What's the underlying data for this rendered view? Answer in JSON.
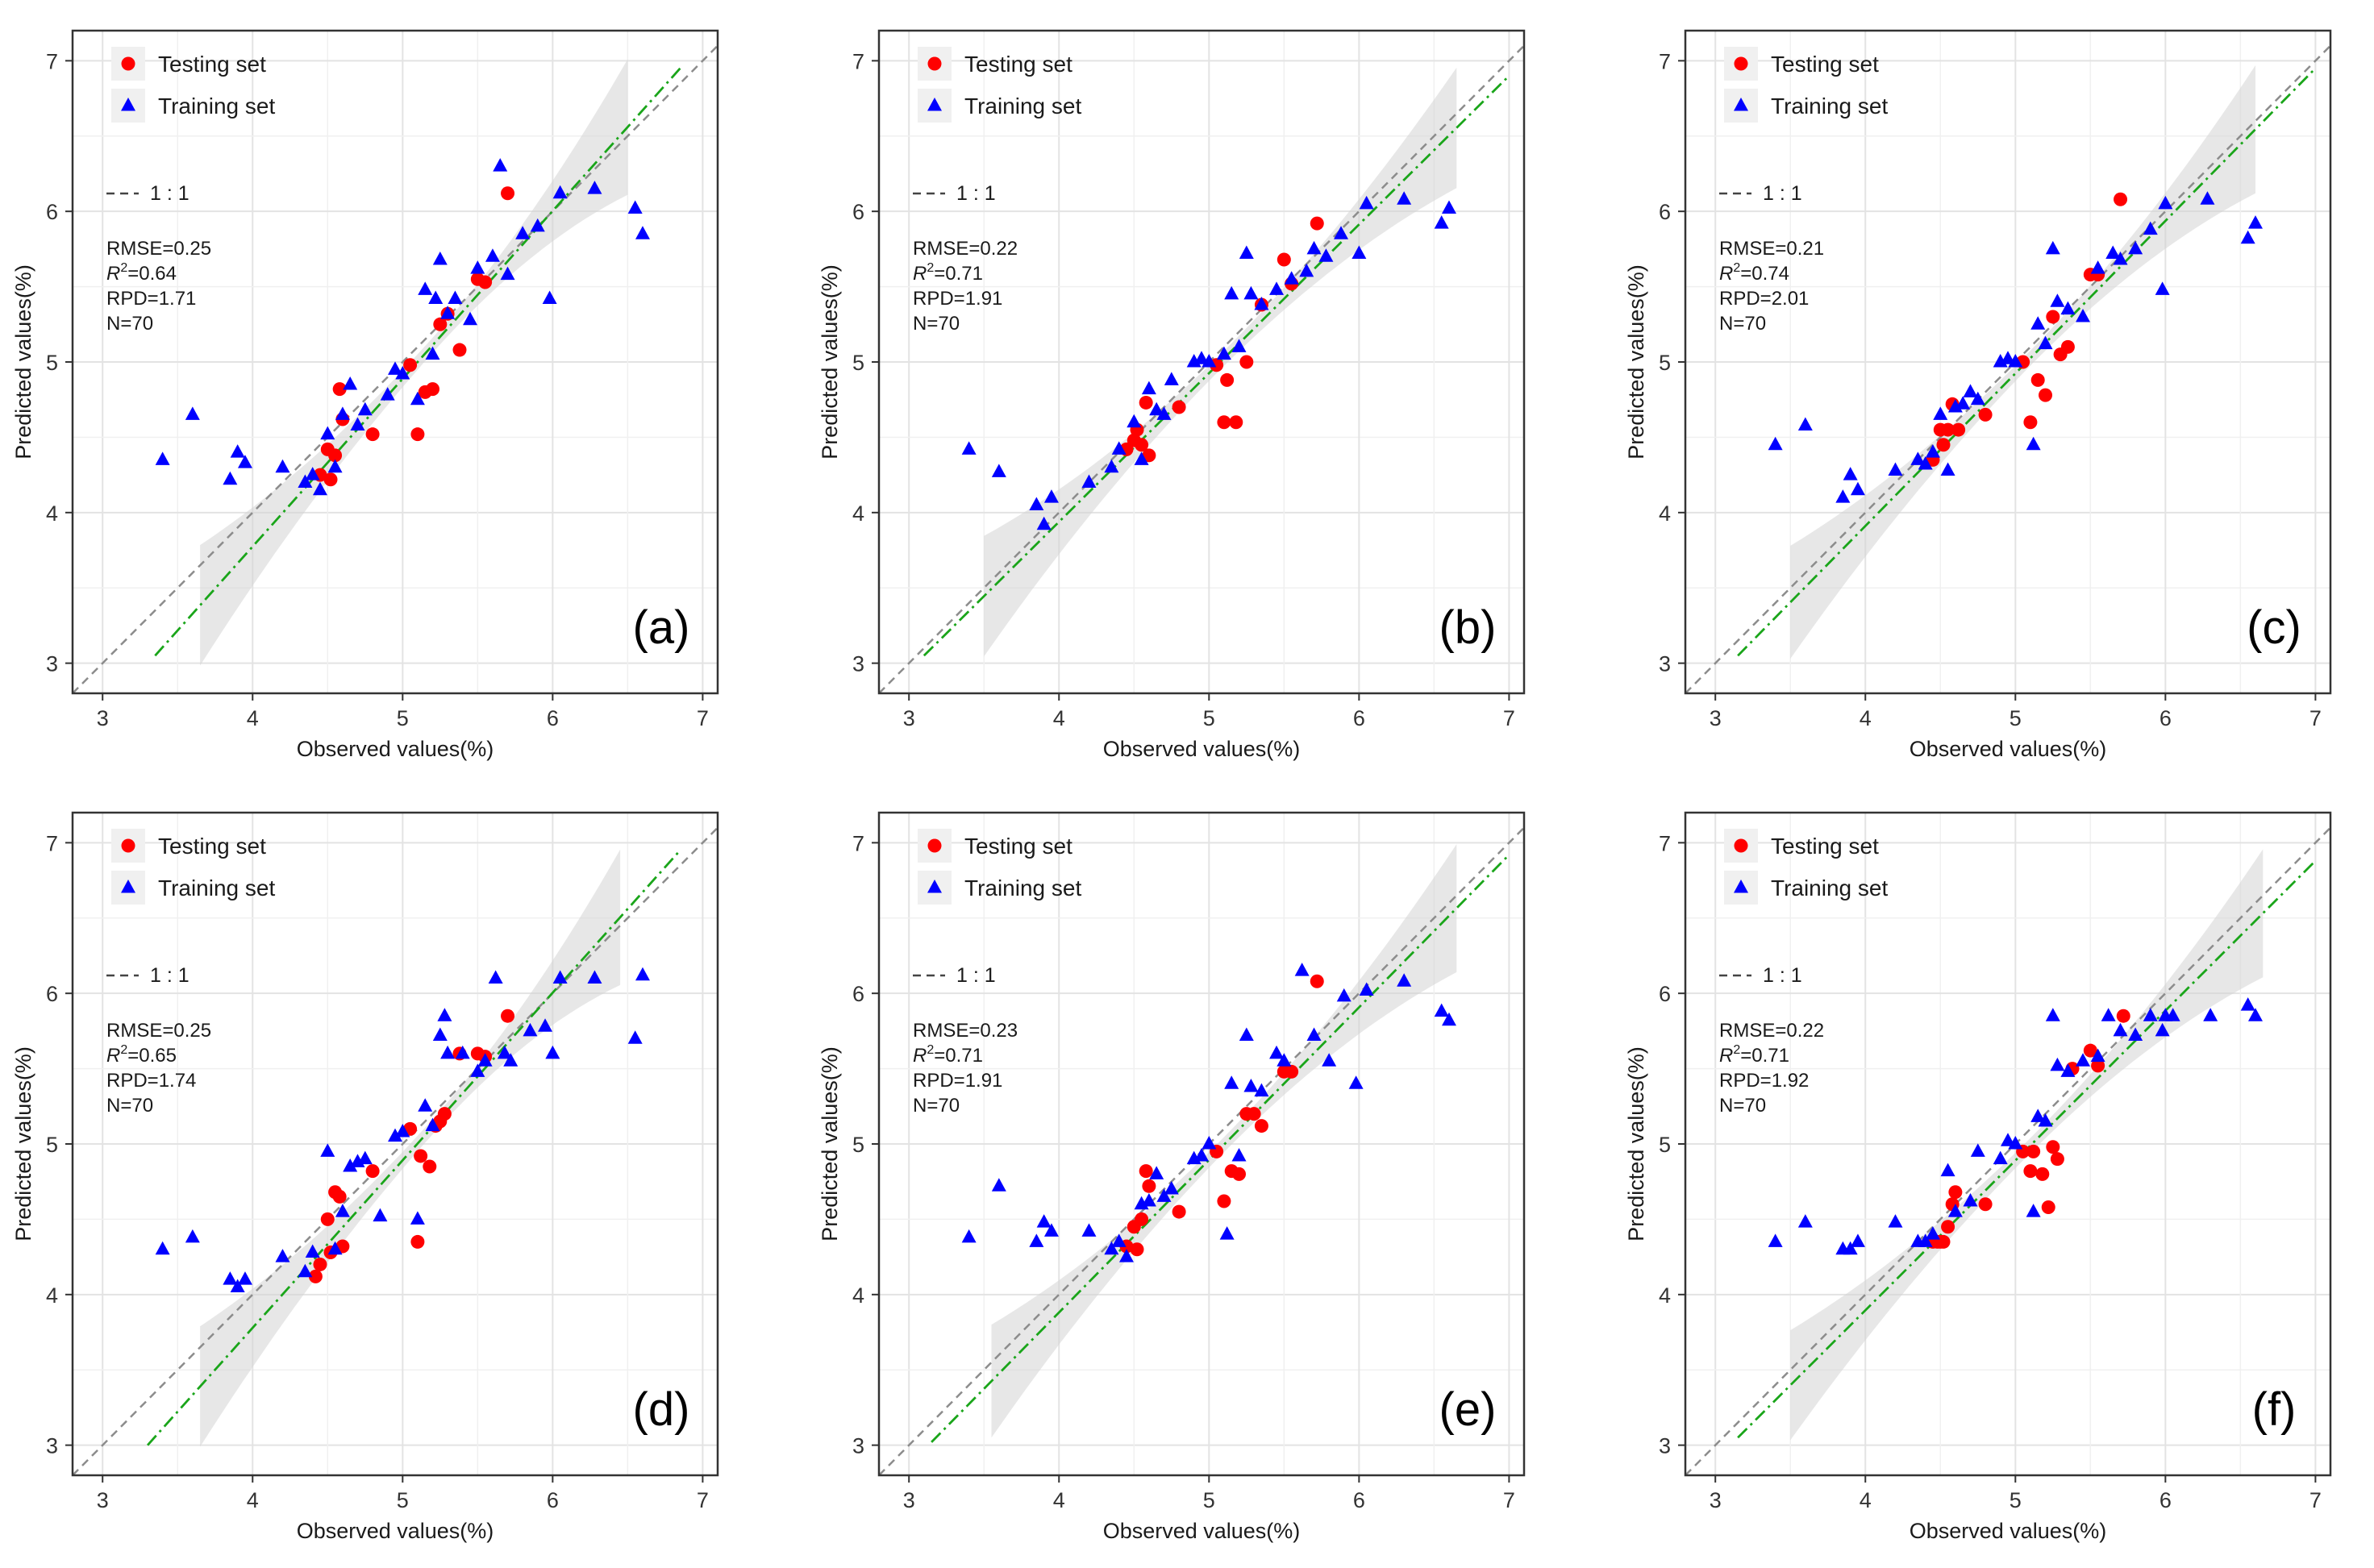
{
  "chart_data": [
    {
      "type": "scatter",
      "panel_label": "(a)",
      "xlabel": "Observed values(%)",
      "ylabel": "Predicted values(%)",
      "xlim": [
        2.8,
        7.1
      ],
      "ylim": [
        2.8,
        7.2
      ],
      "x_ticks": [
        "3",
        "4",
        "5",
        "6",
        "7"
      ],
      "y_ticks": [
        "3",
        "4",
        "5",
        "6",
        "7"
      ],
      "grid": true,
      "legend": [
        "Testing set",
        "Training set"
      ],
      "legend_position": "top-left",
      "one_to_one_label": "1 : 1",
      "stats": [
        "RMSE=0.25",
        "R²=0.64",
        "RPD=1.71",
        "N=70"
      ],
      "fit_line": {
        "x": [
          3.35,
          6.85
        ],
        "y": [
          3.05,
          6.95
        ]
      },
      "confidence_band": {
        "x_range": [
          3.65,
          6.5
        ],
        "upper_at_ends": [
          3.8,
          6.95
        ],
        "lower_at_ends": [
          3.0,
          6.05
        ],
        "pinch_x": 5.2
      },
      "series": [
        {
          "name": "Testing set",
          "marker": "circle",
          "color": "#ff0000",
          "x": [
            4.45,
            4.5,
            4.52,
            4.55,
            4.58,
            4.6,
            4.8,
            5.05,
            5.1,
            5.15,
            5.2,
            5.25,
            5.3,
            5.38,
            5.5,
            5.55,
            5.7
          ],
          "y": [
            4.25,
            4.42,
            4.22,
            4.38,
            4.82,
            4.62,
            4.52,
            4.98,
            4.52,
            4.8,
            4.82,
            5.25,
            5.32,
            5.08,
            5.55,
            5.53,
            6.12
          ]
        },
        {
          "name": "Training set",
          "marker": "triangle",
          "color": "#0000ff",
          "x": [
            3.4,
            3.6,
            3.85,
            3.9,
            3.95,
            4.2,
            4.35,
            4.4,
            4.45,
            4.5,
            4.55,
            4.6,
            4.65,
            4.7,
            4.75,
            4.9,
            4.95,
            5.0,
            5.1,
            5.15,
            5.2,
            5.22,
            5.25,
            5.3,
            5.35,
            5.45,
            5.5,
            5.6,
            5.65,
            5.7,
            5.8,
            5.9,
            5.98,
            6.05,
            6.28,
            6.55,
            6.6
          ],
          "y": [
            4.35,
            4.65,
            4.22,
            4.4,
            4.33,
            4.3,
            4.2,
            4.25,
            4.15,
            4.52,
            4.3,
            4.65,
            4.85,
            4.58,
            4.68,
            4.78,
            4.95,
            4.92,
            4.75,
            5.48,
            5.05,
            5.42,
            5.68,
            5.32,
            5.42,
            5.28,
            5.62,
            5.7,
            6.3,
            5.58,
            5.85,
            5.9,
            5.42,
            6.12,
            6.15,
            6.02,
            5.85
          ]
        }
      ]
    },
    {
      "type": "scatter",
      "panel_label": "(b)",
      "xlabel": "Observed values(%)",
      "ylabel": "Predicted values(%)",
      "xlim": [
        2.8,
        7.1
      ],
      "ylim": [
        2.8,
        7.2
      ],
      "x_ticks": [
        "3",
        "4",
        "5",
        "6",
        "7"
      ],
      "y_ticks": [
        "3",
        "4",
        "5",
        "6",
        "7"
      ],
      "grid": true,
      "legend": [
        "Testing set",
        "Training set"
      ],
      "legend_position": "top-left",
      "one_to_one_label": "1 : 1",
      "stats": [
        "RMSE=0.22",
        "R²=0.71",
        "RPD=1.91",
        "N=70"
      ],
      "fit_line": {
        "x": [
          3.1,
          7.0
        ],
        "y": [
          3.05,
          6.9
        ]
      },
      "confidence_band": {
        "x_range": [
          3.5,
          6.65
        ],
        "upper_at_ends": [
          3.85,
          6.95
        ],
        "lower_at_ends": [
          3.05,
          6.15
        ],
        "pinch_x": 5.1
      },
      "series": [
        {
          "name": "Testing set",
          "marker": "circle",
          "color": "#ff0000",
          "x": [
            4.45,
            4.5,
            4.52,
            4.55,
            4.58,
            4.6,
            4.8,
            5.05,
            5.1,
            5.12,
            5.18,
            5.25,
            5.35,
            5.5,
            5.55,
            5.72
          ],
          "y": [
            4.42,
            4.48,
            4.55,
            4.45,
            4.73,
            4.38,
            4.7,
            4.98,
            4.6,
            4.88,
            4.6,
            5.0,
            5.38,
            5.68,
            5.52,
            5.92
          ]
        },
        {
          "name": "Training set",
          "marker": "triangle",
          "color": "#0000ff",
          "x": [
            3.4,
            3.6,
            3.85,
            3.9,
            3.95,
            4.2,
            4.35,
            4.4,
            4.5,
            4.55,
            4.6,
            4.65,
            4.7,
            4.75,
            4.9,
            4.95,
            5.0,
            5.1,
            5.15,
            5.2,
            5.25,
            5.28,
            5.35,
            5.45,
            5.55,
            5.65,
            5.7,
            5.78,
            5.88,
            6.0,
            6.05,
            6.3,
            6.55,
            6.6
          ],
          "y": [
            4.42,
            4.27,
            4.05,
            3.92,
            4.1,
            4.2,
            4.3,
            4.42,
            4.6,
            4.35,
            4.82,
            4.68,
            4.65,
            4.88,
            5.0,
            5.02,
            5.0,
            5.05,
            5.45,
            5.1,
            5.72,
            5.45,
            5.38,
            5.48,
            5.55,
            5.6,
            5.75,
            5.7,
            5.85,
            5.72,
            6.05,
            6.08,
            5.92,
            6.02
          ]
        }
      ]
    },
    {
      "type": "scatter",
      "panel_label": "(c)",
      "xlabel": "Observed values(%)",
      "ylabel": "Predicted values(%)",
      "xlim": [
        2.8,
        7.1
      ],
      "ylim": [
        2.8,
        7.2
      ],
      "x_ticks": [
        "3",
        "4",
        "5",
        "6",
        "7"
      ],
      "y_ticks": [
        "3",
        "4",
        "5",
        "6",
        "7"
      ],
      "grid": true,
      "legend": [
        "Testing set",
        "Training set"
      ],
      "legend_position": "top-left",
      "one_to_one_label": "1 : 1",
      "stats": [
        "RMSE=0.21",
        "R²=0.74",
        "RPD=2.01",
        "N=70"
      ],
      "fit_line": {
        "x": [
          3.15,
          7.0
        ],
        "y": [
          3.05,
          6.95
        ]
      },
      "confidence_band": {
        "x_range": [
          3.5,
          6.6
        ],
        "upper_at_ends": [
          3.8,
          6.95
        ],
        "lower_at_ends": [
          3.05,
          6.1
        ],
        "pinch_x": 5.1
      },
      "series": [
        {
          "name": "Testing set",
          "marker": "circle",
          "color": "#ff0000",
          "x": [
            4.45,
            4.5,
            4.52,
            4.55,
            4.58,
            4.62,
            4.8,
            5.05,
            5.1,
            5.15,
            5.2,
            5.25,
            5.3,
            5.35,
            5.5,
            5.55,
            5.7
          ],
          "y": [
            4.35,
            4.55,
            4.45,
            4.55,
            4.72,
            4.55,
            4.65,
            5.0,
            4.6,
            4.88,
            4.78,
            5.3,
            5.05,
            5.1,
            5.58,
            5.58,
            6.08
          ]
        },
        {
          "name": "Training set",
          "marker": "triangle",
          "color": "#0000ff",
          "x": [
            3.4,
            3.6,
            3.85,
            3.9,
            3.95,
            4.2,
            4.35,
            4.4,
            4.45,
            4.5,
            4.55,
            4.6,
            4.65,
            4.7,
            4.75,
            4.9,
            4.95,
            5.0,
            5.12,
            5.15,
            5.2,
            5.25,
            5.28,
            5.35,
            5.45,
            5.55,
            5.65,
            5.7,
            5.8,
            5.9,
            5.98,
            6.0,
            6.28,
            6.55,
            6.6
          ],
          "y": [
            4.45,
            4.58,
            4.1,
            4.25,
            4.15,
            4.28,
            4.35,
            4.32,
            4.4,
            4.65,
            4.28,
            4.7,
            4.72,
            4.8,
            4.75,
            5.0,
            5.02,
            5.0,
            4.45,
            5.25,
            5.12,
            5.75,
            5.4,
            5.35,
            5.3,
            5.62,
            5.72,
            5.68,
            5.75,
            5.88,
            5.48,
            6.05,
            6.08,
            5.82,
            5.92
          ]
        }
      ]
    },
    {
      "type": "scatter",
      "panel_label": "(d)",
      "xlabel": "Observed values(%)",
      "ylabel": "Predicted values(%)",
      "xlim": [
        2.8,
        7.1
      ],
      "ylim": [
        2.8,
        7.2
      ],
      "x_ticks": [
        "3",
        "4",
        "5",
        "6",
        "7"
      ],
      "y_ticks": [
        "3",
        "4",
        "5",
        "6",
        "7"
      ],
      "grid": true,
      "legend": [
        "Testing set",
        "Training set"
      ],
      "legend_position": "top-left",
      "one_to_one_label": "1 : 1",
      "stats": [
        "RMSE=0.25",
        "R²=0.65",
        "RPD=1.74",
        "N=70"
      ],
      "fit_line": {
        "x": [
          3.3,
          6.85
        ],
        "y": [
          3.0,
          6.95
        ]
      },
      "confidence_band": {
        "x_range": [
          3.65,
          6.45
        ],
        "upper_at_ends": [
          3.8,
          6.95
        ],
        "lower_at_ends": [
          3.0,
          6.05
        ],
        "pinch_x": 5.2
      },
      "series": [
        {
          "name": "Testing set",
          "marker": "circle",
          "color": "#ff0000",
          "x": [
            4.42,
            4.45,
            4.5,
            4.52,
            4.55,
            4.58,
            4.6,
            4.8,
            5.05,
            5.1,
            5.12,
            5.18,
            5.22,
            5.25,
            5.28,
            5.38,
            5.5,
            5.55,
            5.7
          ],
          "y": [
            4.12,
            4.2,
            4.5,
            4.28,
            4.68,
            4.65,
            4.32,
            4.82,
            5.1,
            4.35,
            4.92,
            4.85,
            5.12,
            5.15,
            5.2,
            5.6,
            5.6,
            5.58,
            5.85
          ]
        },
        {
          "name": "Training set",
          "marker": "triangle",
          "color": "#0000ff",
          "x": [
            3.4,
            3.6,
            3.85,
            3.9,
            3.95,
            4.2,
            4.35,
            4.4,
            4.5,
            4.55,
            4.6,
            4.65,
            4.7,
            4.75,
            4.85,
            4.95,
            5.0,
            5.1,
            5.15,
            5.2,
            5.25,
            5.28,
            5.3,
            5.4,
            5.5,
            5.55,
            5.62,
            5.68,
            5.72,
            5.85,
            5.95,
            6.0,
            6.05,
            6.28,
            6.55,
            6.6
          ],
          "y": [
            4.3,
            4.38,
            4.1,
            4.05,
            4.1,
            4.25,
            4.15,
            4.28,
            4.95,
            4.3,
            4.55,
            4.85,
            4.88,
            4.9,
            4.52,
            5.05,
            5.08,
            4.5,
            5.25,
            5.12,
            5.72,
            5.85,
            5.6,
            5.6,
            5.48,
            5.55,
            6.1,
            5.6,
            5.55,
            5.75,
            5.78,
            5.6,
            6.1,
            6.1,
            5.7,
            6.12
          ]
        }
      ]
    },
    {
      "type": "scatter",
      "panel_label": "(e)",
      "xlabel": "Observed values(%)",
      "ylabel": "Predicted values(%)",
      "xlim": [
        2.8,
        7.1
      ],
      "ylim": [
        2.8,
        7.2
      ],
      "x_ticks": [
        "3",
        "4",
        "5",
        "6",
        "7"
      ],
      "y_ticks": [
        "3",
        "4",
        "5",
        "6",
        "7"
      ],
      "grid": true,
      "legend": [
        "Testing set",
        "Training set"
      ],
      "legend_position": "top-left",
      "one_to_one_label": "1 : 1",
      "stats": [
        "RMSE=0.23",
        "R²=0.71",
        "RPD=1.91",
        "N=70"
      ],
      "fit_line": {
        "x": [
          3.15,
          7.0
        ],
        "y": [
          3.02,
          6.92
        ]
      },
      "confidence_band": {
        "x_range": [
          3.55,
          6.65
        ],
        "upper_at_ends": [
          3.8,
          6.95
        ],
        "lower_at_ends": [
          3.05,
          6.1
        ],
        "pinch_x": 5.1
      },
      "series": [
        {
          "name": "Testing set",
          "marker": "circle",
          "color": "#ff0000",
          "x": [
            4.45,
            4.5,
            4.52,
            4.55,
            4.58,
            4.6,
            4.8,
            5.05,
            5.1,
            5.15,
            5.2,
            5.25,
            5.3,
            5.35,
            5.5,
            5.55,
            5.72
          ],
          "y": [
            4.32,
            4.45,
            4.3,
            4.5,
            4.82,
            4.72,
            4.55,
            4.95,
            4.62,
            4.82,
            4.8,
            5.2,
            5.2,
            5.12,
            5.48,
            5.48,
            6.08
          ]
        },
        {
          "name": "Training set",
          "marker": "triangle",
          "color": "#0000ff",
          "x": [
            3.4,
            3.6,
            3.85,
            3.9,
            3.95,
            4.2,
            4.35,
            4.4,
            4.45,
            4.55,
            4.6,
            4.65,
            4.7,
            4.75,
            4.9,
            4.95,
            5.0,
            5.12,
            5.15,
            5.2,
            5.25,
            5.28,
            5.35,
            5.45,
            5.5,
            5.62,
            5.7,
            5.8,
            5.9,
            5.98,
            6.05,
            6.3,
            6.55,
            6.6
          ],
          "y": [
            4.38,
            4.72,
            4.35,
            4.48,
            4.42,
            4.42,
            4.3,
            4.35,
            4.25,
            4.6,
            4.62,
            4.8,
            4.65,
            4.7,
            4.9,
            4.92,
            5.0,
            4.4,
            5.4,
            4.92,
            5.72,
            5.38,
            5.35,
            5.6,
            5.55,
            6.15,
            5.72,
            5.55,
            5.98,
            5.4,
            6.02,
            6.08,
            5.88,
            5.82
          ]
        }
      ]
    },
    {
      "type": "scatter",
      "panel_label": "(f)",
      "xlabel": "Observed values(%)",
      "ylabel": "Predicted values(%)",
      "xlim": [
        2.8,
        7.1
      ],
      "ylim": [
        2.8,
        7.2
      ],
      "x_ticks": [
        "3",
        "4",
        "5",
        "6",
        "7"
      ],
      "y_ticks": [
        "3",
        "4",
        "5",
        "6",
        "7"
      ],
      "grid": true,
      "legend": [
        "Testing set",
        "Training set"
      ],
      "legend_position": "top-left",
      "one_to_one_label": "1 : 1",
      "stats": [
        "RMSE=0.22",
        "R²=0.71",
        "RPD=1.92",
        "N=70"
      ],
      "fit_line": {
        "x": [
          3.15,
          7.0
        ],
        "y": [
          3.05,
          6.88
        ]
      },
      "confidence_band": {
        "x_range": [
          3.5,
          6.65
        ],
        "upper_at_ends": [
          3.78,
          6.95
        ],
        "lower_at_ends": [
          3.05,
          6.1
        ],
        "pinch_x": 5.1
      },
      "series": [
        {
          "name": "Testing set",
          "marker": "circle",
          "color": "#ff0000",
          "x": [
            4.45,
            4.48,
            4.5,
            4.52,
            4.55,
            4.58,
            4.6,
            4.8,
            5.05,
            5.1,
            5.12,
            5.18,
            5.22,
            5.25,
            5.28,
            5.38,
            5.5,
            5.55,
            5.72
          ],
          "y": [
            4.35,
            4.35,
            4.35,
            4.35,
            4.45,
            4.6,
            4.68,
            4.6,
            4.95,
            4.82,
            4.95,
            4.8,
            4.58,
            4.98,
            4.9,
            5.5,
            5.62,
            5.52,
            5.85
          ]
        },
        {
          "name": "Training set",
          "marker": "triangle",
          "color": "#0000ff",
          "x": [
            3.4,
            3.6,
            3.85,
            3.9,
            3.95,
            4.2,
            4.35,
            4.4,
            4.45,
            4.55,
            4.6,
            4.7,
            4.75,
            4.9,
            4.95,
            5.0,
            5.12,
            5.15,
            5.2,
            5.25,
            5.28,
            5.35,
            5.45,
            5.55,
            5.62,
            5.7,
            5.8,
            5.9,
            5.98,
            6.0,
            6.05,
            6.3,
            6.55,
            6.6
          ],
          "y": [
            4.35,
            4.48,
            4.3,
            4.3,
            4.35,
            4.48,
            4.35,
            4.35,
            4.4,
            4.82,
            4.55,
            4.62,
            4.95,
            4.9,
            5.02,
            5.0,
            4.55,
            5.18,
            5.15,
            5.85,
            5.52,
            5.48,
            5.55,
            5.58,
            5.85,
            5.75,
            5.72,
            5.85,
            5.75,
            5.85,
            5.85,
            5.85,
            5.92,
            5.85
          ]
        }
      ]
    }
  ]
}
